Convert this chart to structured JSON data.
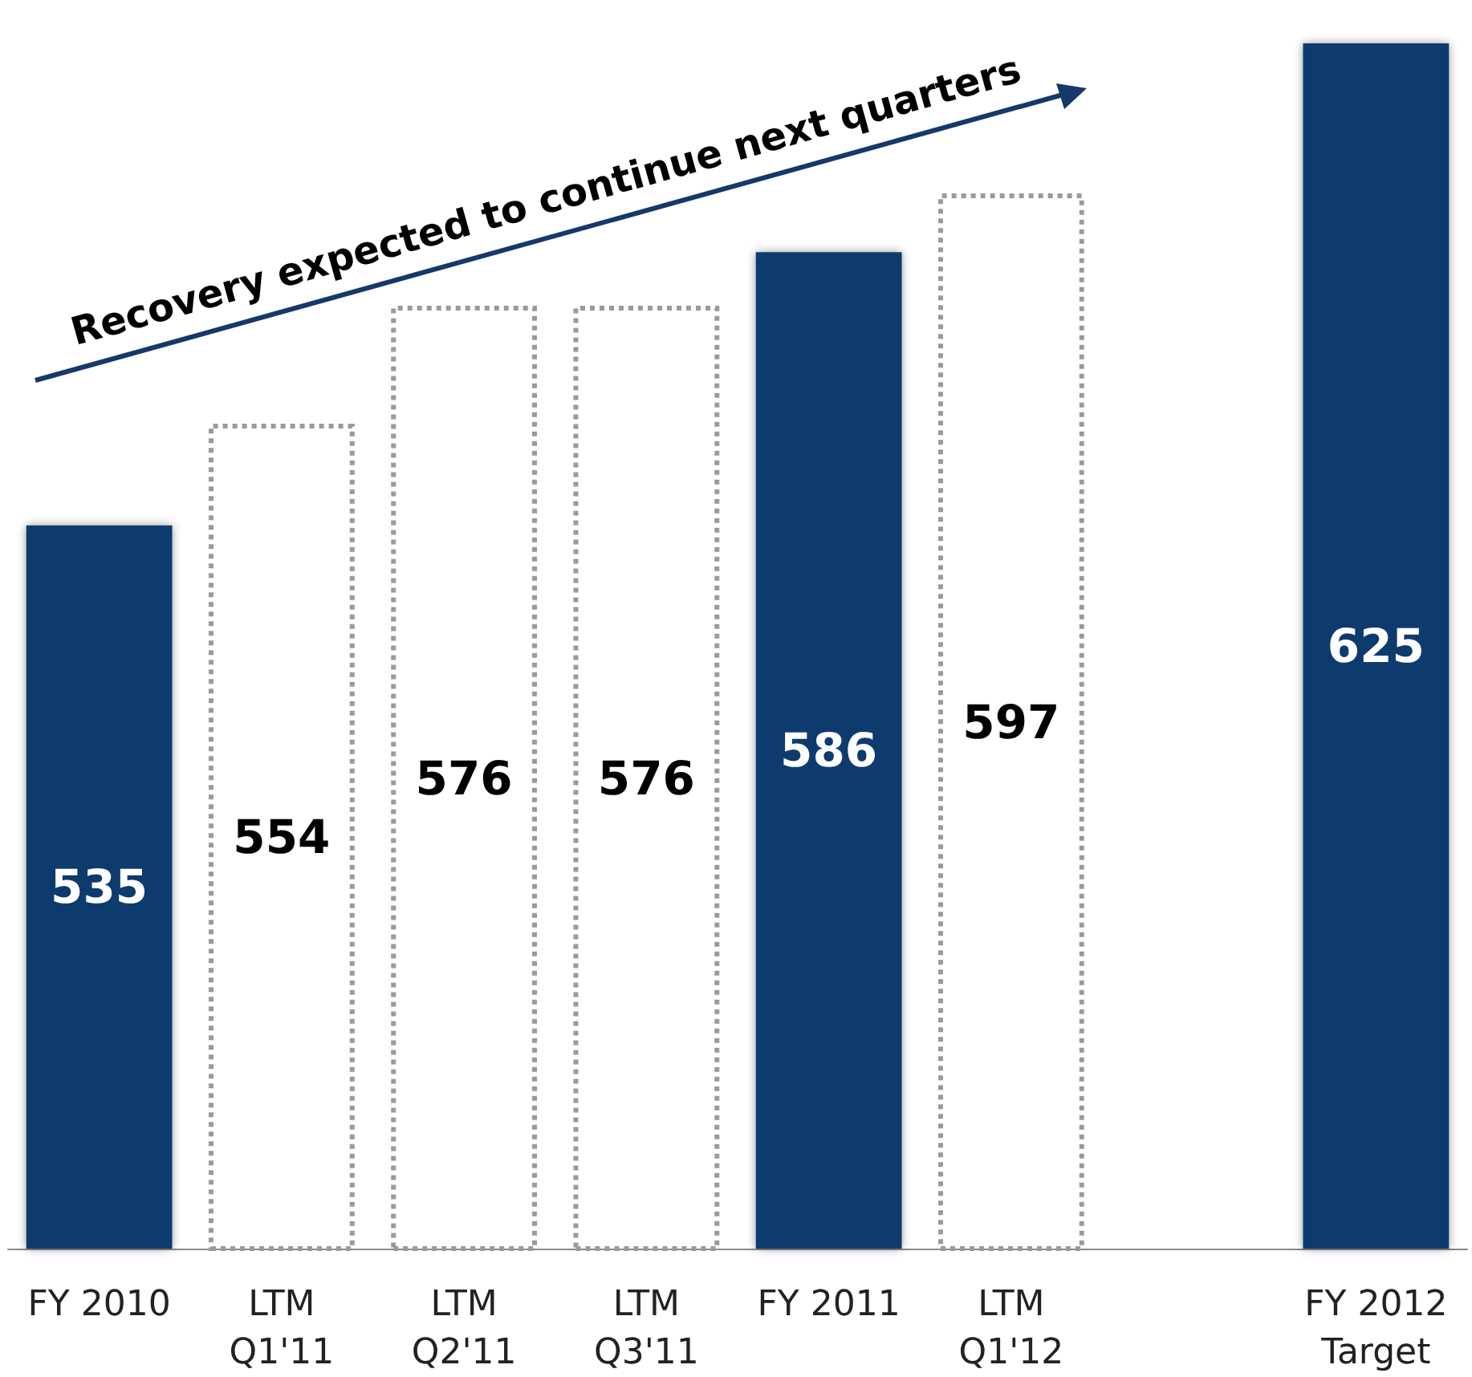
{
  "chart_data": {
    "type": "bar",
    "categories": [
      "FY 2010",
      "LTM\nQ1'11",
      "LTM\nQ2'11",
      "LTM\nQ3'11",
      "FY 2011",
      "LTM\nQ1'12",
      null,
      "FY 2012\nTarget"
    ],
    "series": [
      {
        "color": "#0b3a6e",
        "values": [
          535,
          null,
          null,
          null,
          586,
          null,
          null,
          625
        ]
      },
      {
        "color": "#ffffff",
        "line_style": "dotted",
        "values": [
          null,
          554,
          576,
          576,
          null,
          597,
          null,
          null
        ]
      }
    ],
    "ylim": [
      400,
      625
    ],
    "tick_labels": "x",
    "data_labels": true,
    "annotations": [
      "Recovery expected to continue next quarters"
    ]
  }
}
